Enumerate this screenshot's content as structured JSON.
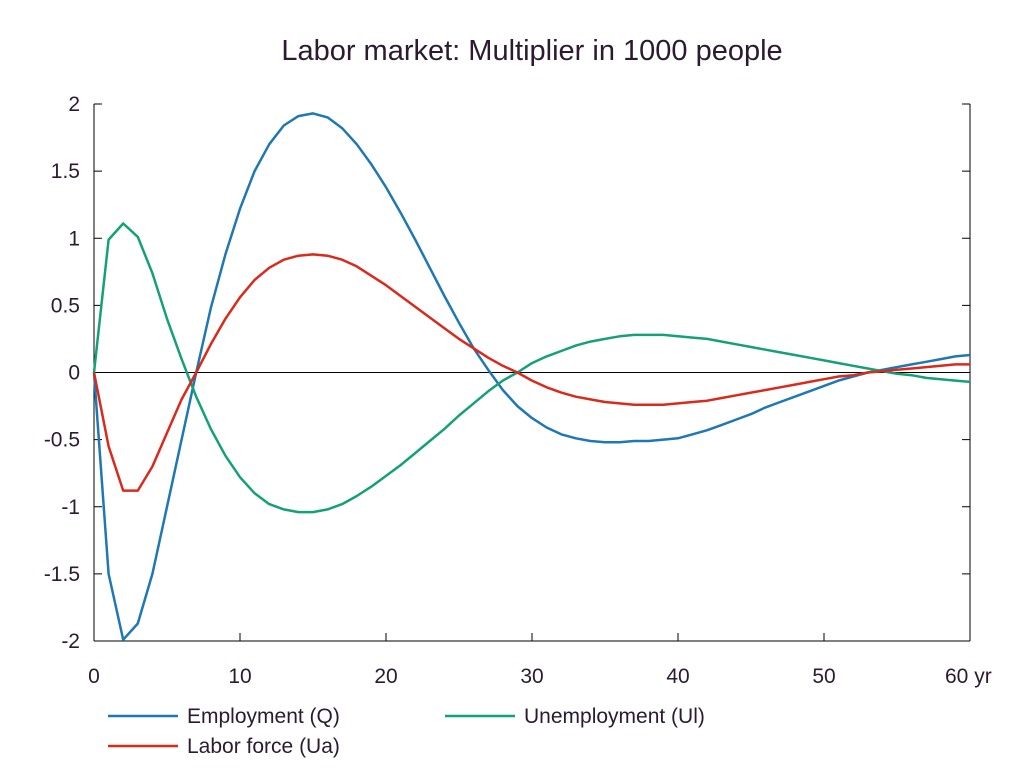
{
  "chart_data": {
    "type": "line",
    "title": "Labor market: Multiplier in 1000 people",
    "xlabel": "",
    "ylabel": "",
    "xlim": [
      0,
      60
    ],
    "ylim": [
      -2,
      2
    ],
    "x_ticks": [
      0,
      10,
      20,
      30,
      40,
      50,
      60
    ],
    "x_tick_labels": [
      "0",
      "10",
      "20",
      "30",
      "40",
      "50",
      "60 yr"
    ],
    "y_ticks": [
      2,
      1.5,
      1,
      0.5,
      0,
      -0.5,
      -1,
      -1.5,
      -2
    ],
    "y_tick_labels": [
      "2",
      "1.5",
      "1",
      "0.5",
      "0",
      "-0.5",
      "-1",
      "-1.5",
      "-2"
    ],
    "grid": false,
    "zero_line": true,
    "legend_position": "bottom",
    "series": [
      {
        "name": "Employment (Q)",
        "color": "#1f78b4",
        "x": [
          0,
          1,
          2,
          3,
          4,
          5,
          6,
          7,
          8,
          9,
          10,
          11,
          12,
          13,
          14,
          15,
          16,
          17,
          18,
          19,
          20,
          21,
          22,
          23,
          24,
          25,
          26,
          27,
          28,
          29,
          30,
          31,
          32,
          33,
          34,
          35,
          36,
          37,
          38,
          39,
          40,
          41,
          42,
          43,
          44,
          45,
          46,
          47,
          48,
          49,
          50,
          51,
          52,
          53,
          54,
          55,
          56,
          57,
          58,
          59,
          60
        ],
        "y": [
          0,
          -1.5,
          -1.99,
          -1.87,
          -1.5,
          -1.0,
          -0.5,
          0.0,
          0.48,
          0.88,
          1.22,
          1.5,
          1.7,
          1.84,
          1.91,
          1.93,
          1.9,
          1.82,
          1.7,
          1.55,
          1.38,
          1.19,
          0.99,
          0.78,
          0.57,
          0.37,
          0.18,
          0.02,
          -0.13,
          -0.25,
          -0.34,
          -0.41,
          -0.46,
          -0.49,
          -0.51,
          -0.52,
          -0.52,
          -0.51,
          -0.51,
          -0.5,
          -0.49,
          -0.46,
          -0.43,
          -0.39,
          -0.35,
          -0.31,
          -0.26,
          -0.22,
          -0.18,
          -0.14,
          -0.1,
          -0.06,
          -0.03,
          0.0,
          0.02,
          0.04,
          0.06,
          0.08,
          0.1,
          0.12,
          0.13
        ]
      },
      {
        "name": "Unemployment (Ul)",
        "color": "#16a077",
        "x": [
          0,
          1,
          2,
          3,
          4,
          5,
          6,
          7,
          8,
          9,
          10,
          11,
          12,
          13,
          14,
          15,
          16,
          17,
          18,
          19,
          20,
          21,
          22,
          23,
          24,
          25,
          26,
          27,
          28,
          29,
          30,
          31,
          32,
          33,
          34,
          35,
          36,
          37,
          38,
          39,
          40,
          41,
          42,
          43,
          44,
          45,
          46,
          47,
          48,
          49,
          50,
          51,
          52,
          53,
          54,
          55,
          56,
          57,
          58,
          59,
          60
        ],
        "y": [
          0,
          0.99,
          1.11,
          1.01,
          0.74,
          0.4,
          0.1,
          -0.18,
          -0.42,
          -0.62,
          -0.78,
          -0.9,
          -0.98,
          -1.02,
          -1.04,
          -1.04,
          -1.02,
          -0.98,
          -0.92,
          -0.85,
          -0.77,
          -0.69,
          -0.6,
          -0.51,
          -0.42,
          -0.32,
          -0.23,
          -0.14,
          -0.06,
          0.0,
          0.07,
          0.12,
          0.16,
          0.2,
          0.23,
          0.25,
          0.27,
          0.28,
          0.28,
          0.28,
          0.27,
          0.26,
          0.25,
          0.23,
          0.21,
          0.19,
          0.17,
          0.15,
          0.13,
          0.11,
          0.09,
          0.07,
          0.05,
          0.03,
          0.01,
          -0.01,
          -0.02,
          -0.04,
          -0.05,
          -0.06,
          -0.07
        ]
      },
      {
        "name": "Labor force (Ua)",
        "color": "#d92a1c",
        "x": [
          0,
          1,
          2,
          3,
          4,
          5,
          6,
          7,
          8,
          9,
          10,
          11,
          12,
          13,
          14,
          15,
          16,
          17,
          18,
          19,
          20,
          21,
          22,
          23,
          24,
          25,
          26,
          27,
          28,
          29,
          30,
          31,
          32,
          33,
          34,
          35,
          36,
          37,
          38,
          39,
          40,
          41,
          42,
          43,
          44,
          45,
          46,
          47,
          48,
          49,
          50,
          51,
          52,
          53,
          54,
          55,
          56,
          57,
          58,
          59,
          60
        ],
        "y": [
          0,
          -0.55,
          -0.88,
          -0.88,
          -0.7,
          -0.45,
          -0.2,
          0.0,
          0.21,
          0.4,
          0.56,
          0.69,
          0.78,
          0.84,
          0.87,
          0.88,
          0.87,
          0.84,
          0.79,
          0.72,
          0.65,
          0.57,
          0.49,
          0.41,
          0.33,
          0.25,
          0.18,
          0.11,
          0.05,
          0.0,
          -0.06,
          -0.11,
          -0.15,
          -0.18,
          -0.2,
          -0.22,
          -0.23,
          -0.24,
          -0.24,
          -0.24,
          -0.23,
          -0.22,
          -0.21,
          -0.19,
          -0.17,
          -0.15,
          -0.13,
          -0.11,
          -0.09,
          -0.07,
          -0.05,
          -0.03,
          -0.02,
          0.0,
          0.01,
          0.02,
          0.03,
          0.04,
          0.05,
          0.06,
          0.06
        ]
      }
    ]
  }
}
